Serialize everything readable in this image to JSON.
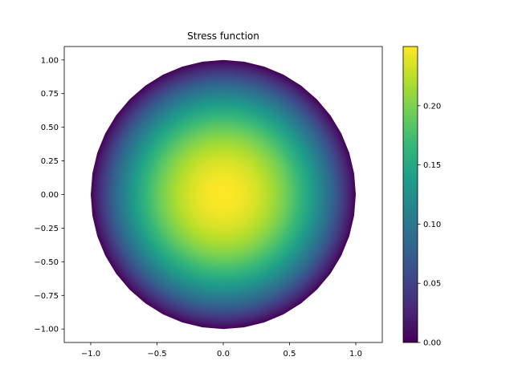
{
  "chart_data": {
    "type": "heatmap",
    "title": "Stress function",
    "xlabel": "",
    "ylabel": "",
    "xlim": [
      -1.2,
      1.2
    ],
    "ylim": [
      -1.1,
      1.1
    ],
    "aspect": "equal",
    "grid": false,
    "field": {
      "domain": "unit disk",
      "formula": "0.25 * (1 - x^2 - y^2)",
      "center": [
        0,
        0
      ],
      "radius": 1.0,
      "min": 0.0,
      "max": 0.25
    },
    "x_ticks": [
      {
        "value": -1.0,
        "label": "−1.0"
      },
      {
        "value": -0.5,
        "label": "−0.5"
      },
      {
        "value": 0.0,
        "label": "0.0"
      },
      {
        "value": 0.5,
        "label": "0.5"
      },
      {
        "value": 1.0,
        "label": "1.0"
      }
    ],
    "y_ticks": [
      {
        "value": 1.0,
        "label": "1.00"
      },
      {
        "value": 0.75,
        "label": "0.75"
      },
      {
        "value": 0.5,
        "label": "0.50"
      },
      {
        "value": 0.25,
        "label": "0.25"
      },
      {
        "value": 0.0,
        "label": "0.00"
      },
      {
        "value": -0.25,
        "label": "−0.25"
      },
      {
        "value": -0.5,
        "label": "−0.50"
      },
      {
        "value": -0.75,
        "label": "−0.75"
      },
      {
        "value": -1.0,
        "label": "−1.00"
      }
    ],
    "colorbar": {
      "colormap": "viridis",
      "range": [
        0.0,
        0.25
      ],
      "ticks": [
        {
          "value": 0.0,
          "label": "0.00"
        },
        {
          "value": 0.05,
          "label": "0.05"
        },
        {
          "value": 0.1,
          "label": "0.10"
        },
        {
          "value": 0.15,
          "label": "0.15"
        },
        {
          "value": 0.2,
          "label": "0.20"
        }
      ],
      "colors": [
        "#440154",
        "#482878",
        "#3e4989",
        "#31688e",
        "#26828e",
        "#1f9e89",
        "#35b779",
        "#6ece58",
        "#b5de2b",
        "#fde725"
      ]
    }
  }
}
